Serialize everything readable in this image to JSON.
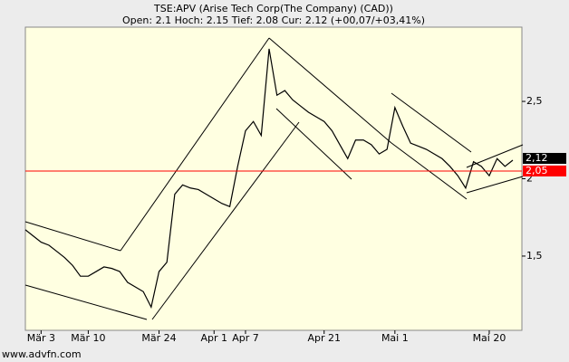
{
  "chart_data": {
    "type": "line",
    "title": "TSE:APV (Arise Tech Corp(The Company) (CAD))",
    "subtitle": "Open: 2.1 Hoch: 2.15 Tief: 2.08 Cur: 2.12 (+00,07/+03,41%)",
    "footer": "www.advfn.com",
    "categories": [
      null,
      null,
      "Mär 3",
      null,
      null,
      null,
      null,
      null,
      "Mär 10",
      null,
      null,
      null,
      null,
      null,
      null,
      null,
      null,
      "Mär 24",
      null,
      null,
      null,
      null,
      null,
      null,
      "Apr 1",
      null,
      null,
      null,
      "Apr 7",
      null,
      null,
      null,
      null,
      null,
      null,
      null,
      null,
      null,
      "Apr 21",
      null,
      null,
      null,
      null,
      null,
      null,
      null,
      null,
      "Mai 1",
      null,
      null,
      null,
      null,
      null,
      null,
      null,
      null,
      null,
      null,
      null,
      "Mai 20",
      null,
      null,
      null
    ],
    "series": [
      {
        "color": "#000000",
        "values": [
          1.67,
          1.63,
          1.59,
          1.57,
          1.53,
          1.49,
          1.44,
          1.37,
          1.37,
          1.4,
          1.43,
          1.42,
          1.4,
          1.33,
          1.3,
          1.27,
          1.17,
          1.4,
          1.46,
          1.9,
          1.96,
          1.94,
          1.93,
          1.9,
          1.87,
          1.84,
          1.82,
          2.08,
          2.31,
          2.37,
          2.28,
          2.84,
          2.54,
          2.57,
          2.51,
          2.47,
          2.43,
          2.4,
          2.37,
          2.31,
          2.22,
          2.13,
          2.25,
          2.25,
          2.22,
          2.16,
          2.19,
          2.46,
          2.34,
          2.23,
          2.21,
          2.19,
          2.16,
          2.13,
          2.08,
          2.02,
          1.94,
          2.11,
          2.08,
          2.02,
          2.13,
          2.08,
          2.12
        ]
      }
    ],
    "ylim": [
      1.02,
      2.98
    ],
    "yticks": [
      {
        "value": 1.5,
        "label": "1,5"
      },
      2,
      {
        "value": 2.5,
        "label": "2,5"
      }
    ],
    "last_price": {
      "value": 2.12,
      "label": "2,12",
      "color": "#000000"
    },
    "reference_line": {
      "value": 2.05,
      "label": "2,05",
      "color": "#ff0000"
    }
  }
}
